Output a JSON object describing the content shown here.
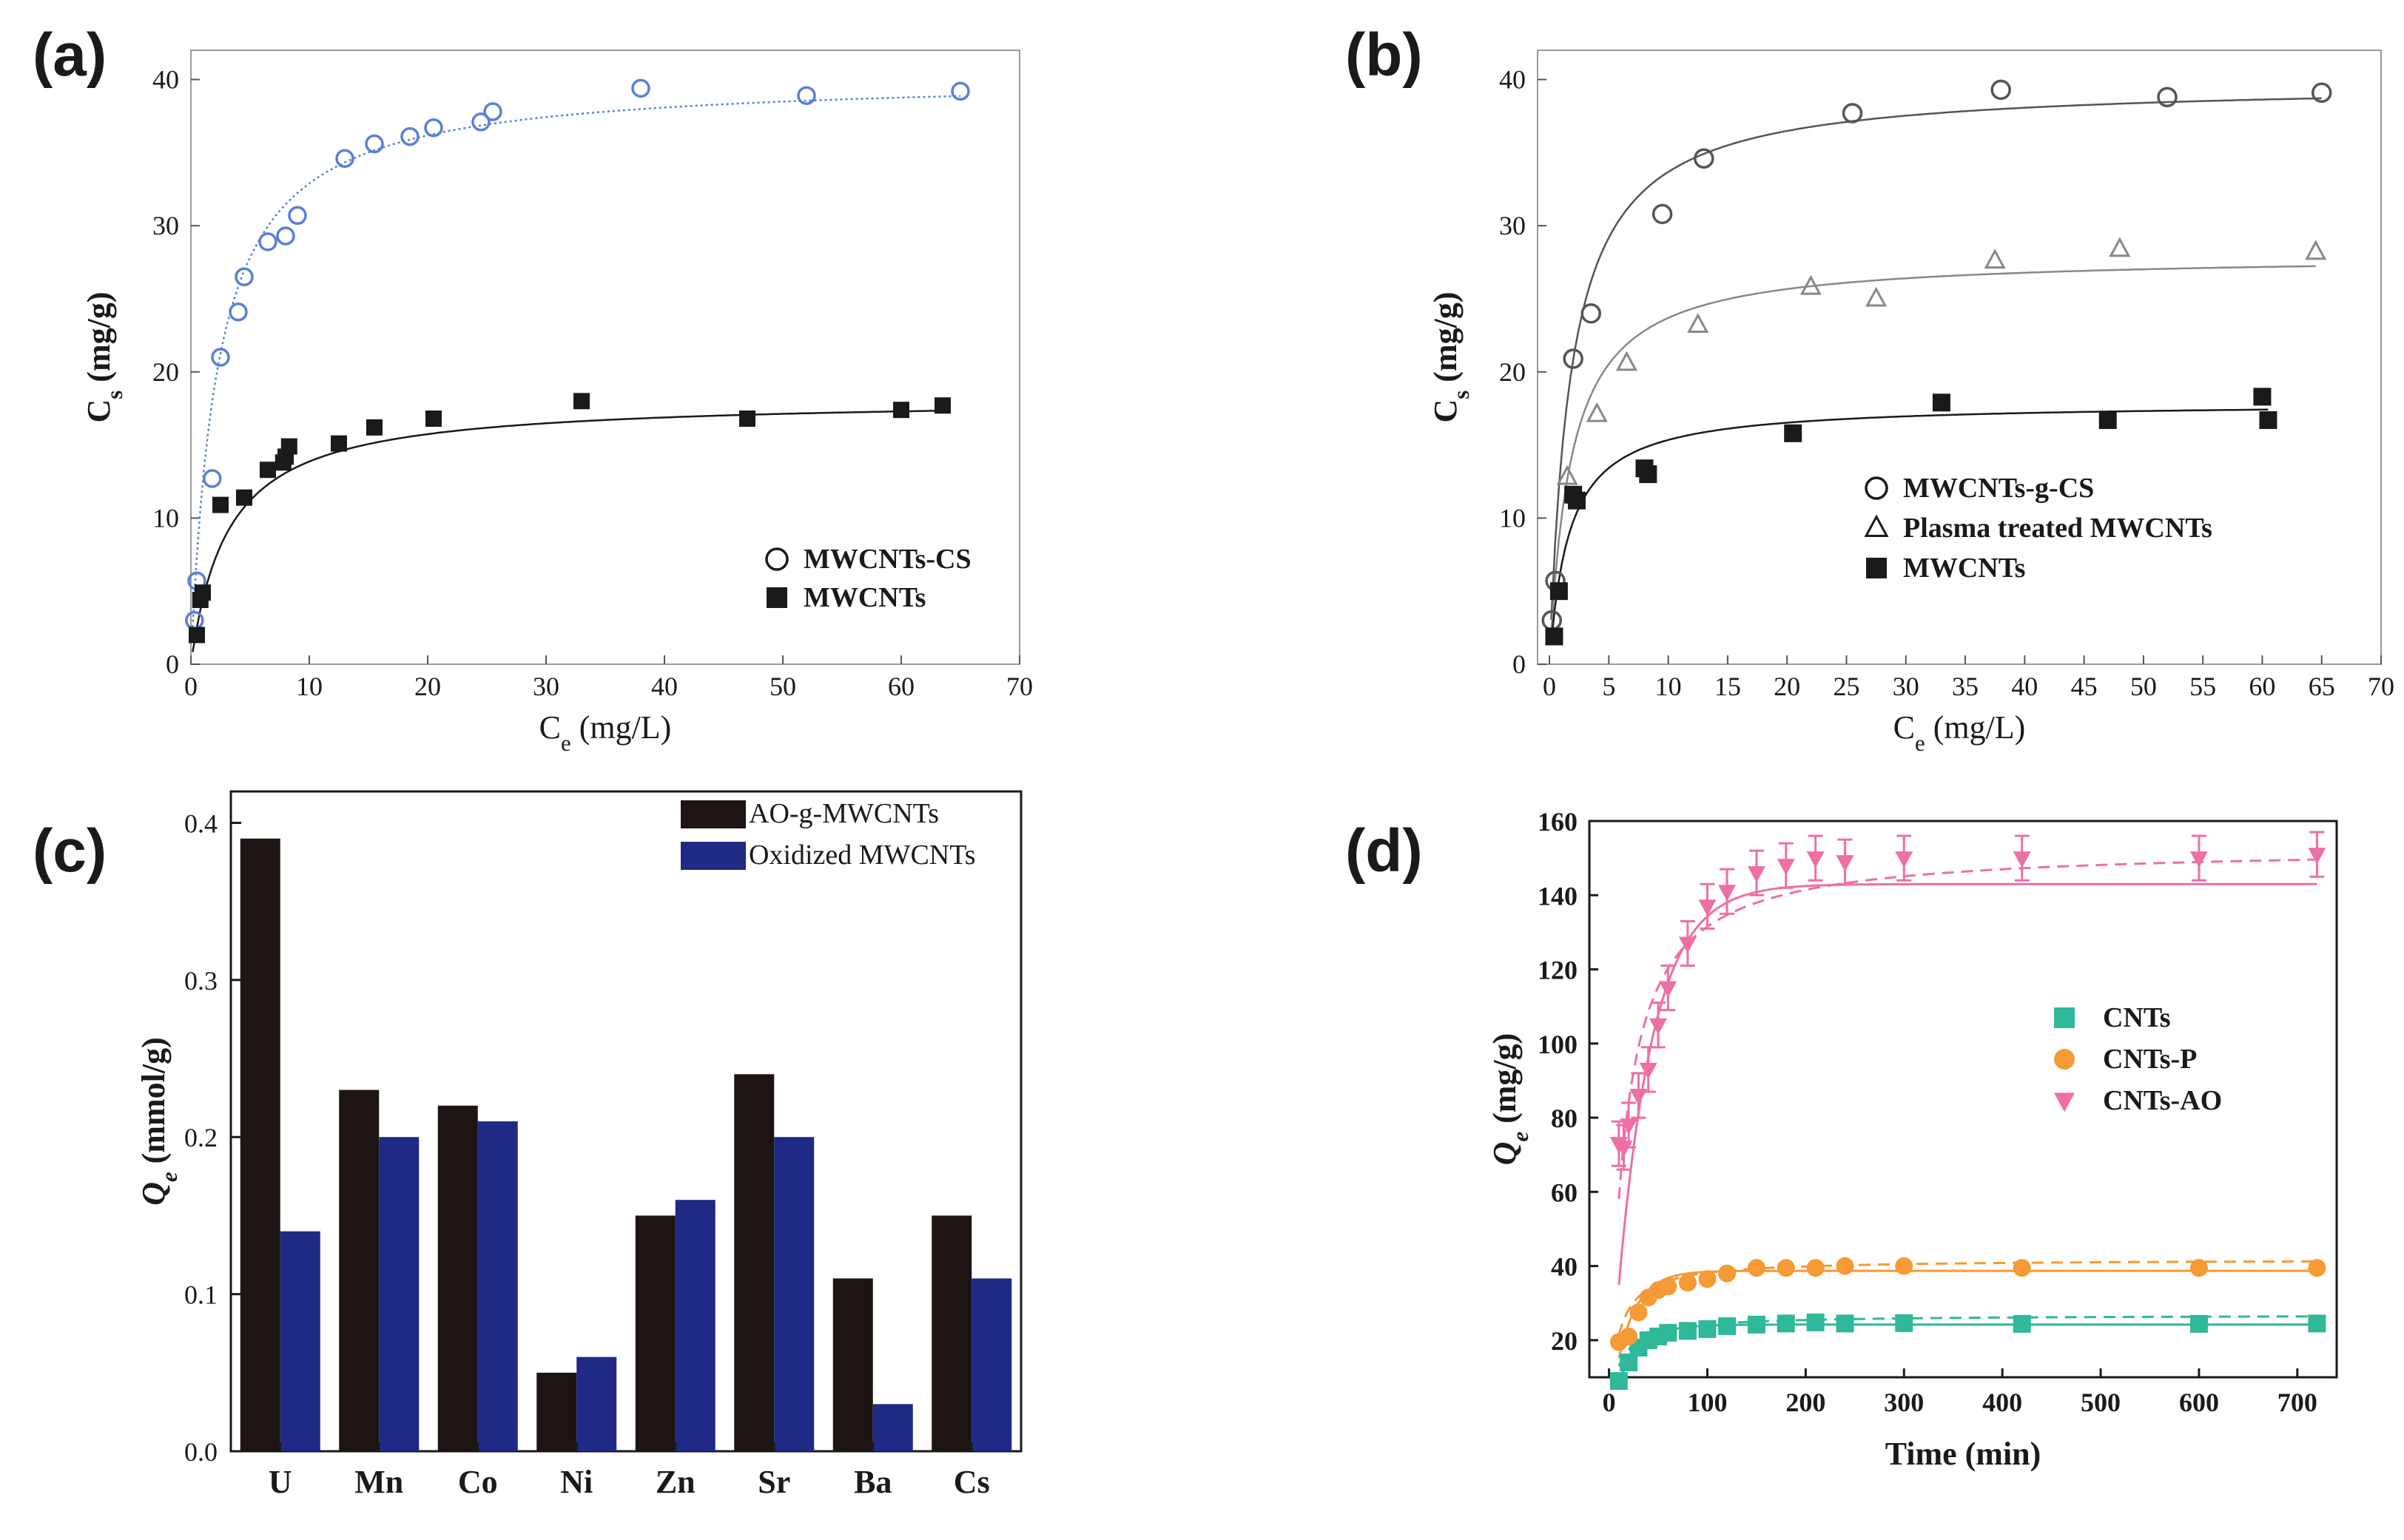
{
  "chart_data": [
    {
      "panel": "(a)",
      "type": "scatter",
      "xlabel_main": "C",
      "xlabel_sub": "e",
      "xlabel_unit": " (mg/L)",
      "ylabel_main": "C",
      "ylabel_sub": "s",
      "ylabel_unit": " (mg/g)",
      "xlim": [
        0,
        70
      ],
      "ylim": [
        0,
        42
      ],
      "xticks": [
        0,
        10,
        20,
        30,
        40,
        50,
        60,
        70
      ],
      "yticks": [
        0,
        10,
        20,
        30,
        40
      ],
      "legend_position": "bottom-right",
      "series": [
        {
          "name": "MWCNTs-CS",
          "marker": "open-circle",
          "color": "#5b7fd6",
          "fit": {
            "qmax": 40.2,
            "K": 0.45,
            "style": "dotted"
          },
          "x": [
            0.3,
            0.5,
            1.8,
            2.5,
            4,
            4.5,
            6.5,
            8,
            9,
            13,
            15.5,
            18.5,
            20.5,
            24.5,
            25.5,
            38,
            52,
            65
          ],
          "y": [
            3,
            5.7,
            12.7,
            21,
            24.1,
            26.5,
            28.9,
            29.3,
            30.7,
            34.6,
            35.6,
            36.1,
            36.7,
            37.1,
            37.8,
            39.4,
            38.9,
            39.2
          ]
        },
        {
          "name": "MWCNTs",
          "marker": "filled-square",
          "color": "#1a1a1a",
          "fit": {
            "qmax": 18.2,
            "K": 0.32,
            "style": "solid"
          },
          "x": [
            0.5,
            0.8,
            1,
            2.5,
            4.5,
            6.5,
            7.8,
            8,
            8.3,
            12.5,
            15.5,
            20.5,
            33,
            47,
            60,
            63.5
          ],
          "y": [
            2,
            4.4,
            4.9,
            10.9,
            11.4,
            13.3,
            13.8,
            14.2,
            14.9,
            15.1,
            16.2,
            16.8,
            18,
            16.8,
            17.4,
            17.7
          ]
        }
      ]
    },
    {
      "panel": "(b)",
      "type": "scatter",
      "xlabel_main": "C",
      "xlabel_sub": "e",
      "xlabel_unit": " (mg/L)",
      "ylabel_main": "C",
      "ylabel_sub": "s",
      "ylabel_unit": " (mg/g)",
      "xlim": [
        -1,
        70
      ],
      "ylim": [
        0,
        42
      ],
      "xticks": [
        0,
        5,
        10,
        15,
        20,
        25,
        30,
        35,
        40,
        45,
        50,
        55,
        60,
        65,
        70
      ],
      "yticks": [
        0,
        10,
        20,
        30,
        40
      ],
      "legend_position": "bottom-right",
      "series": [
        {
          "name": "MWCNTs-g-CS",
          "marker": "open-circle",
          "color": "#555555",
          "fit": {
            "qmax": 39.8,
            "K": 0.55,
            "style": "solid"
          },
          "x": [
            0.2,
            0.5,
            2,
            3.5,
            9.5,
            13,
            25.5,
            38,
            52,
            65
          ],
          "y": [
            3,
            5.7,
            20.9,
            24,
            30.8,
            34.6,
            37.7,
            39.3,
            38.8,
            39.1
          ]
        },
        {
          "name": "Plasma treated MWCNTs",
          "marker": "open-triangle",
          "color": "#888888",
          "fit": {
            "qmax": 28.0,
            "K": 0.55,
            "style": "solid"
          },
          "x": [
            1.5,
            4,
            6.5,
            12.5,
            22,
            27.5,
            37.5,
            48,
            64.5
          ],
          "y": [
            12.8,
            17.1,
            20.6,
            23.2,
            25.8,
            25,
            27.6,
            28.4,
            28.2
          ]
        },
        {
          "name": "MWCNTs",
          "marker": "filled-square",
          "color": "#1a1a1a",
          "fit": {
            "qmax": 17.9,
            "K": 0.6,
            "style": "solid"
          },
          "x": [
            0.4,
            0.8,
            2,
            2.3,
            8,
            8.3,
            20.5,
            33,
            47,
            60,
            60.5
          ],
          "y": [
            1.9,
            5,
            11.6,
            11.2,
            13.4,
            13,
            15.8,
            17.9,
            16.7,
            18.3,
            16.7
          ]
        }
      ]
    },
    {
      "panel": "(c)",
      "type": "bar",
      "ylabel_main": "Q",
      "ylabel_sub": "e",
      "ylabel_unit": " (mmol/g)",
      "ylim": [
        0,
        0.42
      ],
      "yticks": [
        "0.0",
        "0.1",
        "0.2",
        "0.3",
        "0.4"
      ],
      "categories": [
        "U",
        "Mn",
        "Co",
        "Ni",
        "Zn",
        "Sr",
        "Ba",
        "Cs"
      ],
      "legend_position": "top-right",
      "series": [
        {
          "name": "AO-g-MWCNTs",
          "color": "#1e1414",
          "values": [
            0.39,
            0.23,
            0.22,
            0.05,
            0.15,
            0.24,
            0.11,
            0.15
          ]
        },
        {
          "name": "Oxidized MWCNTs",
          "color": "#1f2a86",
          "values": [
            0.14,
            0.2,
            0.21,
            0.06,
            0.16,
            0.2,
            0.03,
            0.11
          ]
        }
      ]
    },
    {
      "panel": "(d)",
      "type": "scatter",
      "xlabel": "Time (min)",
      "ylabel_main": "Q",
      "ylabel_sub": "e",
      "ylabel_unit": " (mg/g)",
      "xlim": [
        -20,
        740
      ],
      "ylim": [
        10,
        160
      ],
      "xticks": [
        0,
        100,
        200,
        300,
        400,
        500,
        600,
        700
      ],
      "yticks": [
        20,
        40,
        60,
        80,
        100,
        120,
        140,
        160
      ],
      "legend_position": "center-right",
      "series": [
        {
          "name": "CNTs",
          "marker": "filled-square",
          "color": "#2fb89a",
          "fit_pfo": {
            "qe": 24.2,
            "k": 0.045
          },
          "fit_pso": {
            "qe": 26.8,
            "k": 0.0035
          },
          "x": [
            10,
            20,
            30,
            40,
            50,
            60,
            80,
            100,
            120,
            150,
            180,
            210,
            240,
            300,
            420,
            600,
            720
          ],
          "y": [
            9,
            14,
            18,
            20,
            21,
            22,
            22.5,
            23,
            23.8,
            24.2,
            24.5,
            24.8,
            24.5,
            24.6,
            24.4,
            24.4,
            24.5
          ]
        },
        {
          "name": "CNTs-P",
          "marker": "filled-circle",
          "color": "#f59a35",
          "fit_pfo": {
            "qe": 38.7,
            "k": 0.05
          },
          "fit_pso": {
            "qe": 41.8,
            "k": 0.0025
          },
          "x": [
            10,
            20,
            30,
            40,
            50,
            60,
            80,
            100,
            120,
            150,
            180,
            210,
            240,
            300,
            420,
            600,
            720
          ],
          "y": [
            19.5,
            21,
            27.5,
            31.5,
            33.5,
            34.5,
            35.5,
            36.5,
            38,
            39.5,
            39.5,
            39.5,
            40,
            40,
            39.5,
            39.5,
            39.5
          ]
        },
        {
          "name": "CNTs-AO",
          "marker": "filled-triangle-down",
          "color": "#ee6fa4",
          "fit_pfo": {
            "qe": 143,
            "k": 0.028
          },
          "fit_pso": {
            "qe": 153,
            "k": 0.0004
          },
          "x": [
            10,
            15,
            20,
            30,
            40,
            50,
            60,
            80,
            100,
            120,
            150,
            180,
            210,
            240,
            300,
            420,
            600,
            720
          ],
          "y": [
            73,
            72,
            78,
            86,
            93,
            105,
            115,
            127,
            137,
            141,
            146,
            148,
            150,
            149,
            150,
            150,
            150,
            151
          ],
          "err": 6
        }
      ]
    }
  ]
}
